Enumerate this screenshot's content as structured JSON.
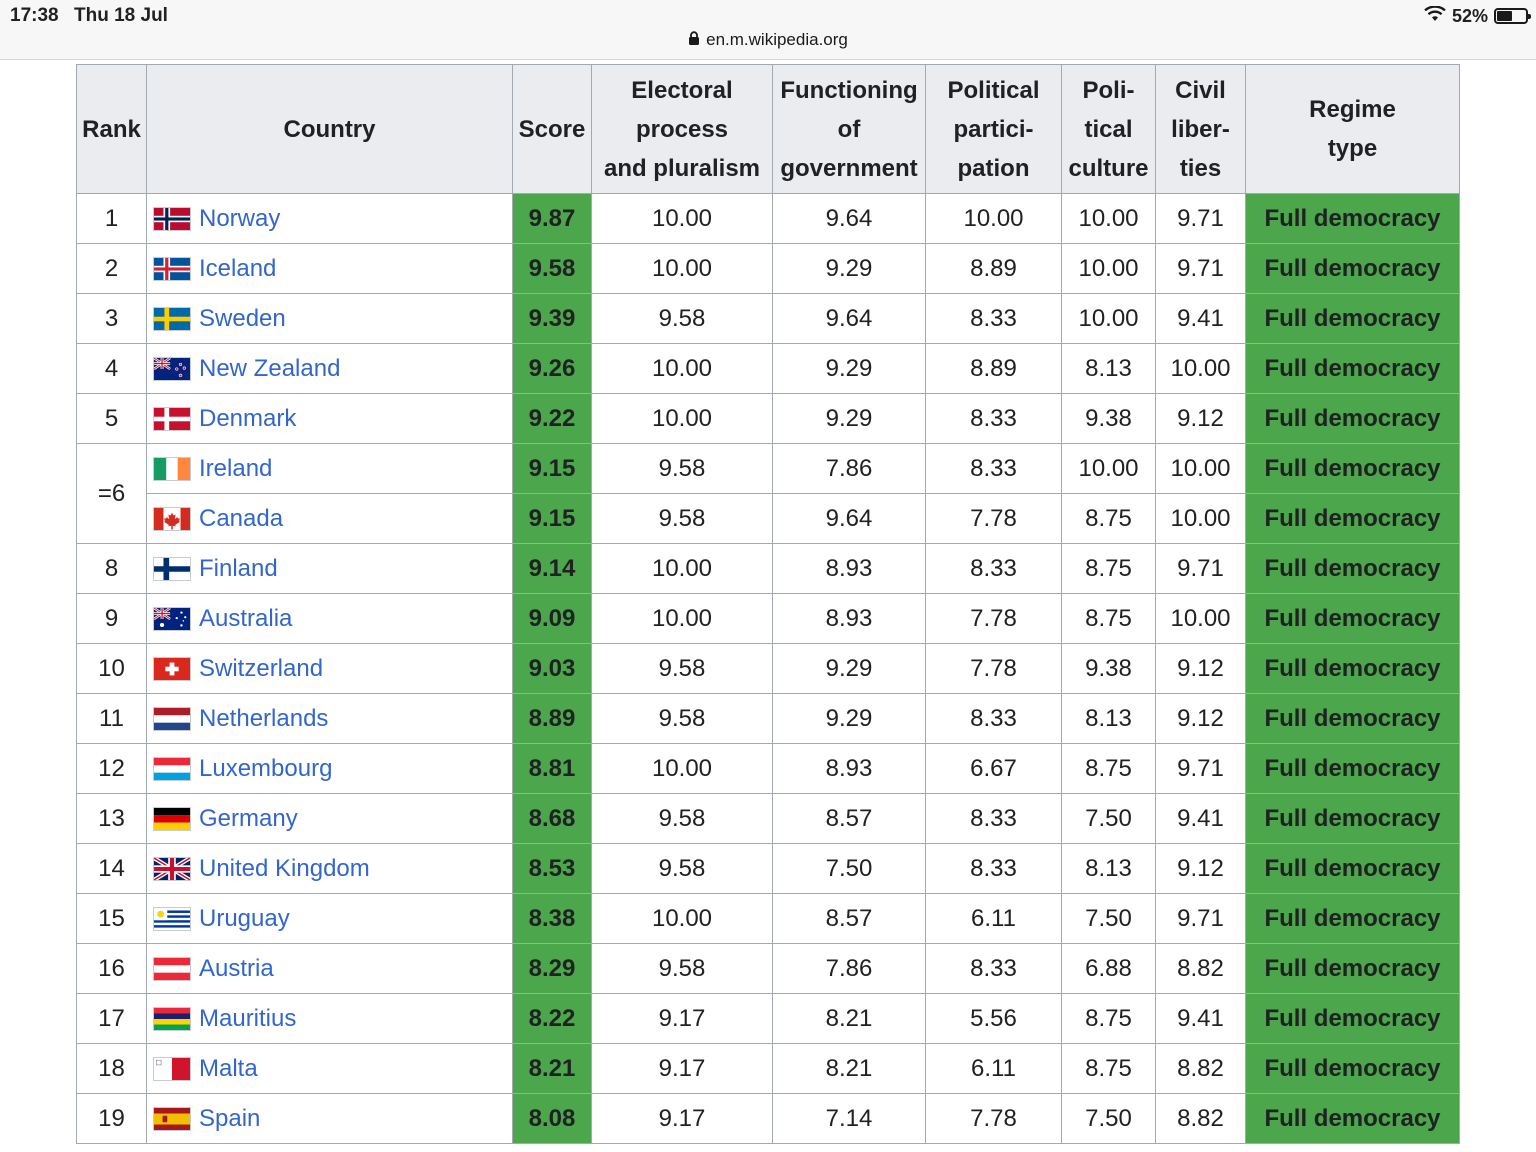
{
  "status_bar": {
    "time": "17:38",
    "date": "Thu 18 Jul",
    "url": "en.m.wikipedia.org",
    "battery": "52%",
    "battery_level": 0.52
  },
  "table": {
    "headers": {
      "rank": "Rank",
      "country": "Country",
      "score": "Score",
      "electoral_1": "Electoral",
      "electoral_2": "process",
      "electoral_3": "and pluralism",
      "functioning_1": "Functioning",
      "functioning_2": "of",
      "functioning_3": "government",
      "political_1": "Political",
      "political_2": "partici-",
      "political_3": "pation",
      "culture_1": "Poli-",
      "culture_2": "tical",
      "culture_3": "culture",
      "civil_1": "Civil",
      "civil_2": "liber-",
      "civil_3": "ties",
      "regime_1": "Regime",
      "regime_2": "type"
    },
    "colors": {
      "full_democracy": "#4ca64c",
      "header_bg": "#eaecf0",
      "link": "#3366cc"
    },
    "rows": [
      {
        "rank": "1",
        "flag": "norway-flag",
        "country": "Norway",
        "score": "9.87",
        "electoral": "10.00",
        "functioning": "9.64",
        "political": "10.00",
        "culture": "10.00",
        "civil": "9.71",
        "regime": "Full democracy"
      },
      {
        "rank": "2",
        "flag": "iceland-flag",
        "country": "Iceland",
        "score": "9.58",
        "electoral": "10.00",
        "functioning": "9.29",
        "political": "8.89",
        "culture": "10.00",
        "civil": "9.71",
        "regime": "Full democracy"
      },
      {
        "rank": "3",
        "flag": "sweden-flag",
        "country": "Sweden",
        "score": "9.39",
        "electoral": "9.58",
        "functioning": "9.64",
        "political": "8.33",
        "culture": "10.00",
        "civil": "9.41",
        "regime": "Full democracy"
      },
      {
        "rank": "4",
        "flag": "new-zealand-flag",
        "country": "New Zealand",
        "score": "9.26",
        "electoral": "10.00",
        "functioning": "9.29",
        "political": "8.89",
        "culture": "8.13",
        "civil": "10.00",
        "regime": "Full democracy"
      },
      {
        "rank": "5",
        "flag": "denmark-flag",
        "country": "Denmark",
        "score": "9.22",
        "electoral": "10.00",
        "functioning": "9.29",
        "political": "8.33",
        "culture": "9.38",
        "civil": "9.12",
        "regime": "Full democracy"
      },
      {
        "rank": "=6",
        "flag": "ireland-flag",
        "country": "Ireland",
        "score": "9.15",
        "electoral": "9.58",
        "functioning": "7.86",
        "political": "8.33",
        "culture": "10.00",
        "civil": "10.00",
        "regime": "Full democracy"
      },
      {
        "rank": "",
        "flag": "canada-flag",
        "country": "Canada",
        "score": "9.15",
        "electoral": "9.58",
        "functioning": "9.64",
        "political": "7.78",
        "culture": "8.75",
        "civil": "10.00",
        "regime": "Full democracy"
      },
      {
        "rank": "8",
        "flag": "finland-flag",
        "country": "Finland",
        "score": "9.14",
        "electoral": "10.00",
        "functioning": "8.93",
        "political": "8.33",
        "culture": "8.75",
        "civil": "9.71",
        "regime": "Full democracy"
      },
      {
        "rank": "9",
        "flag": "australia-flag",
        "country": "Australia",
        "score": "9.09",
        "electoral": "10.00",
        "functioning": "8.93",
        "political": "7.78",
        "culture": "8.75",
        "civil": "10.00",
        "regime": "Full democracy"
      },
      {
        "rank": "10",
        "flag": "switzerland-flag",
        "country": "Switzerland",
        "score": "9.03",
        "electoral": "9.58",
        "functioning": "9.29",
        "political": "7.78",
        "culture": "9.38",
        "civil": "9.12",
        "regime": "Full democracy"
      },
      {
        "rank": "11",
        "flag": "netherlands-flag",
        "country": "Netherlands",
        "score": "8.89",
        "electoral": "9.58",
        "functioning": "9.29",
        "political": "8.33",
        "culture": "8.13",
        "civil": "9.12",
        "regime": "Full democracy"
      },
      {
        "rank": "12",
        "flag": "luxembourg-flag",
        "country": "Luxembourg",
        "score": "8.81",
        "electoral": "10.00",
        "functioning": "8.93",
        "political": "6.67",
        "culture": "8.75",
        "civil": "9.71",
        "regime": "Full democracy"
      },
      {
        "rank": "13",
        "flag": "germany-flag",
        "country": "Germany",
        "score": "8.68",
        "electoral": "9.58",
        "functioning": "8.57",
        "political": "8.33",
        "culture": "7.50",
        "civil": "9.41",
        "regime": "Full democracy"
      },
      {
        "rank": "14",
        "flag": "united-kingdom-flag",
        "country": "United Kingdom",
        "score": "8.53",
        "electoral": "9.58",
        "functioning": "7.50",
        "political": "8.33",
        "culture": "8.13",
        "civil": "9.12",
        "regime": "Full democracy"
      },
      {
        "rank": "15",
        "flag": "uruguay-flag",
        "country": "Uruguay",
        "score": "8.38",
        "electoral": "10.00",
        "functioning": "8.57",
        "political": "6.11",
        "culture": "7.50",
        "civil": "9.71",
        "regime": "Full democracy"
      },
      {
        "rank": "16",
        "flag": "austria-flag",
        "country": "Austria",
        "score": "8.29",
        "electoral": "9.58",
        "functioning": "7.86",
        "political": "8.33",
        "culture": "6.88",
        "civil": "8.82",
        "regime": "Full democracy"
      },
      {
        "rank": "17",
        "flag": "mauritius-flag",
        "country": "Mauritius",
        "score": "8.22",
        "electoral": "9.17",
        "functioning": "8.21",
        "political": "5.56",
        "culture": "8.75",
        "civil": "9.41",
        "regime": "Full democracy"
      },
      {
        "rank": "18",
        "flag": "malta-flag",
        "country": "Malta",
        "score": "8.21",
        "electoral": "9.17",
        "functioning": "8.21",
        "political": "6.11",
        "culture": "8.75",
        "civil": "8.82",
        "regime": "Full democracy"
      },
      {
        "rank": "19",
        "flag": "spain-flag",
        "country": "Spain",
        "score": "8.08",
        "electoral": "9.17",
        "functioning": "7.14",
        "political": "7.78",
        "culture": "7.50",
        "civil": "8.82",
        "regime": "Full democracy"
      }
    ]
  }
}
